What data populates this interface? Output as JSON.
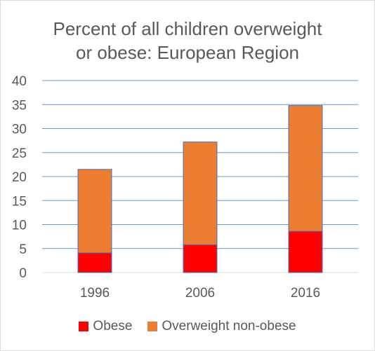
{
  "chart_data": {
    "type": "bar",
    "stacked": true,
    "title_line1": "Percent of all children overweight",
    "title_line2": "or obese: European Region",
    "categories": [
      "1996",
      "2006",
      "2016"
    ],
    "series": [
      {
        "name": "Obese",
        "values": [
          4.1,
          5.8,
          8.6
        ],
        "color": "#ff0000"
      },
      {
        "name": "Overweight non-obese",
        "values": [
          17.4,
          21.4,
          26.2
        ],
        "color": "#ed7d31"
      }
    ],
    "ylim": [
      0,
      40
    ],
    "yticks": [
      0,
      5,
      10,
      15,
      20,
      25,
      30,
      35,
      40
    ],
    "grid": true,
    "legend_position": "bottom",
    "gridline_color": "#5b9bd5",
    "bar_outline_color": "#4472c4"
  }
}
